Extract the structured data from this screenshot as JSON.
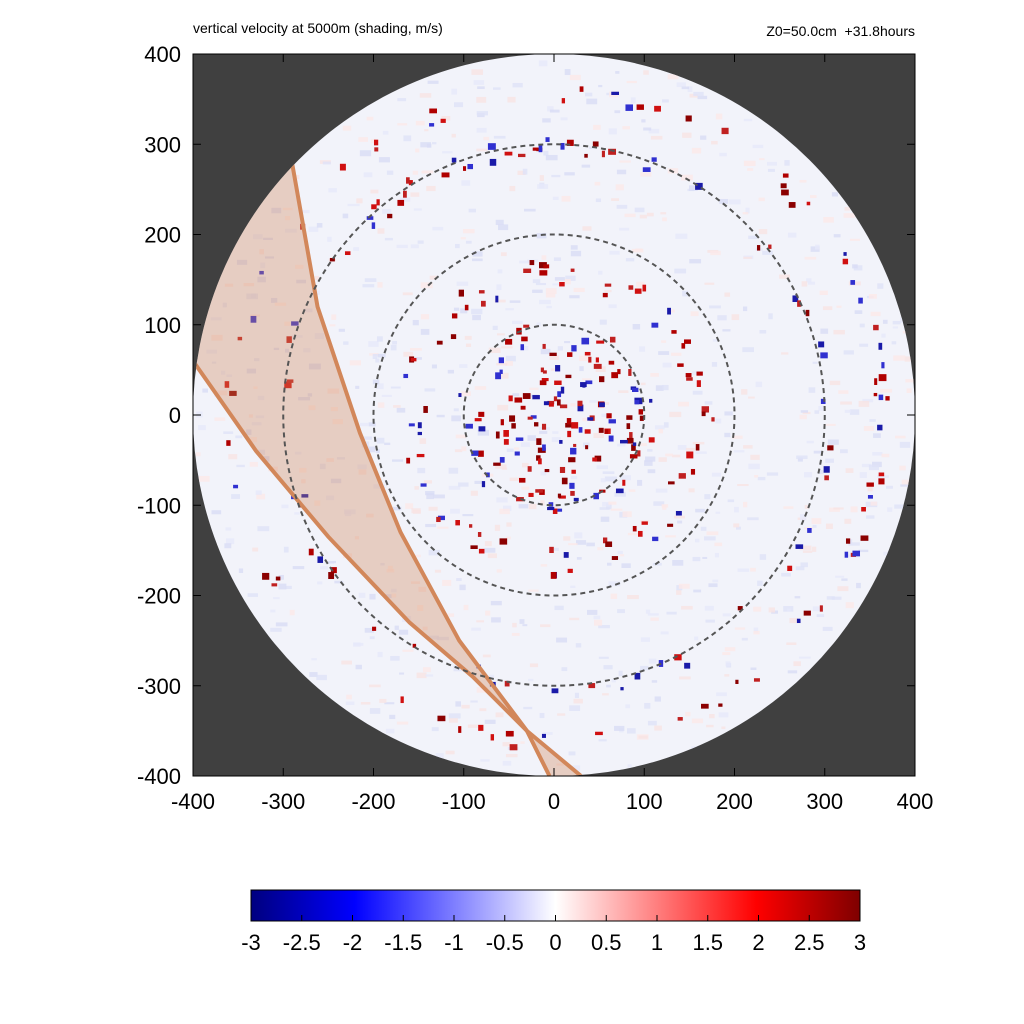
{
  "chart_data": {
    "type": "heatmap",
    "title": "vertical velocity at 5000m (shading, m/s)",
    "subtitle": "Z0=50.0cm  +31.8hours",
    "xlim": [
      -400,
      400
    ],
    "ylim": [
      -400,
      400
    ],
    "x_ticks": [
      "-400",
      "-300",
      "-200",
      "-100",
      "0",
      "100",
      "200",
      "300",
      "400"
    ],
    "y_ticks": [
      "400",
      "300",
      "200",
      "100",
      "0",
      "-100",
      "-200",
      "-300",
      "-400"
    ],
    "domain_radius": 400,
    "range_rings": [
      100,
      200,
      300
    ],
    "colorbar": {
      "min": -3,
      "max": 3,
      "ticks": [
        "-3",
        "-2.5",
        "-2",
        "-1.5",
        "-1",
        "-0.5",
        "0",
        "0.5",
        "1",
        "1.5",
        "2",
        "2.5",
        "3"
      ],
      "colors": [
        "#00007f",
        "#0000ff",
        "#ffffff",
        "#ff0000",
        "#7f0000"
      ]
    },
    "shaded_band": {
      "color": "#d2875a",
      "outer_edge": [
        [
          -290,
          278
        ],
        [
          -262,
          120
        ],
        [
          -215,
          -20
        ],
        [
          -170,
          -130
        ],
        [
          -105,
          -250
        ],
        [
          -30,
          -350
        ],
        [
          30,
          -400
        ]
      ],
      "inner_edge": [
        [
          -400,
          60
        ],
        [
          -330,
          -40
        ],
        [
          -250,
          -135
        ],
        [
          -160,
          -230
        ],
        [
          -90,
          -290
        ],
        [
          -30,
          -350
        ],
        [
          -5,
          -400
        ]
      ]
    }
  }
}
